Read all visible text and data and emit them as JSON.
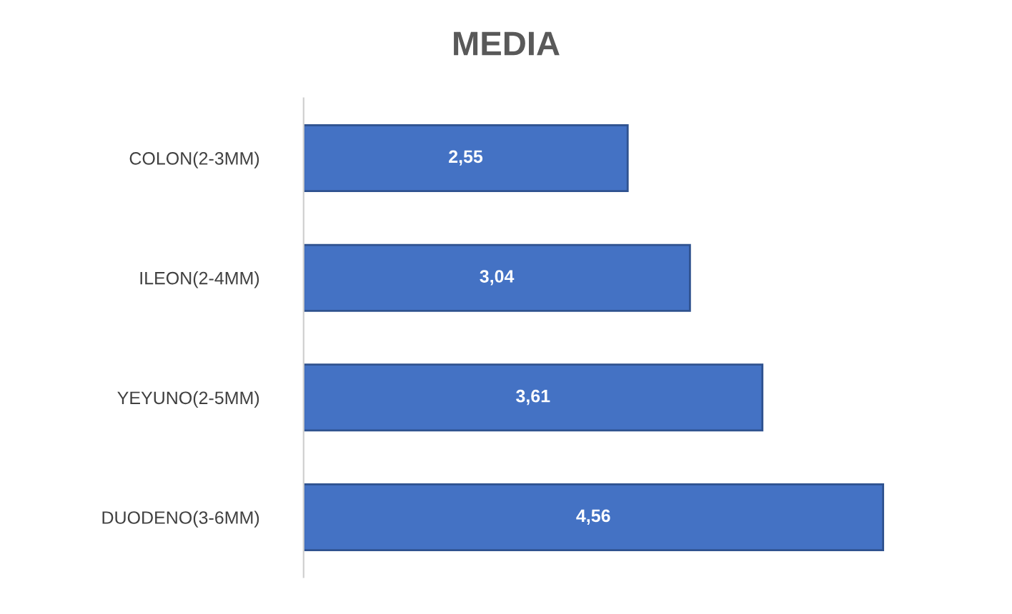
{
  "chart_data": {
    "type": "bar",
    "title": "MEDIA",
    "orientation": "horizontal",
    "categories": [
      "COLON(2-3MM)",
      "ILEON(2-4MM)",
      "YEYUNO(2-5MM)",
      "DUODENO(3-6MM)"
    ],
    "values": [
      2.55,
      3.04,
      3.61,
      4.56
    ],
    "value_labels": [
      "2,55",
      "3,04",
      "3,61",
      "4,56"
    ],
    "color": "#4472c4",
    "grid": false,
    "legend": false
  }
}
